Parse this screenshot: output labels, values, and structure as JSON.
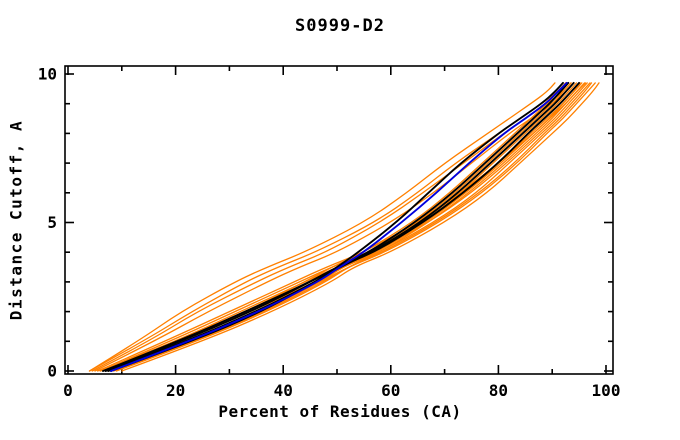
{
  "chart_data": {
    "type": "line",
    "title": "S0999-D2",
    "xlabel": "Percent of Residues (CA)",
    "ylabel": "Distance Cutoff, A",
    "xlim": [
      0,
      100
    ],
    "ylim": [
      0,
      10
    ],
    "x_major_ticks": [
      0,
      20,
      40,
      60,
      80,
      100
    ],
    "x_minor_ticks": [
      10,
      30,
      50,
      70,
      90
    ],
    "y_major_ticks": [
      0,
      5,
      10
    ],
    "y_minor_ticks": [
      1,
      2,
      3,
      4,
      6,
      7,
      8,
      9
    ],
    "grid": false,
    "legend": "none",
    "colors": {
      "orange": "#ff8000",
      "black": "#000000",
      "blue": "#0000dd",
      "axis": "#000000",
      "background": "#ffffff"
    },
    "y_levels": [
      0,
      1,
      2,
      3,
      3.5,
      4,
      5,
      6,
      7,
      8,
      8.5,
      9,
      9.4,
      9.7
    ],
    "series": [
      {
        "id": "orange-01",
        "color": "orange",
        "x": [
          6,
          20,
          33,
          44,
          49,
          55,
          64,
          71,
          77,
          83,
          86,
          89,
          91,
          92.5
        ]
      },
      {
        "id": "orange-02",
        "color": "orange",
        "x": [
          7,
          22,
          35,
          46,
          50,
          56,
          65,
          72,
          78,
          84,
          87,
          90,
          92,
          93.5
        ]
      },
      {
        "id": "orange-03",
        "color": "orange",
        "x": [
          8,
          23,
          36,
          47,
          51,
          57,
          66,
          73,
          79,
          85,
          88,
          91,
          93,
          94.5
        ]
      },
      {
        "id": "orange-04",
        "color": "orange",
        "x": [
          6,
          19,
          31,
          43,
          49,
          56,
          66,
          74,
          80,
          86,
          89,
          92,
          94,
          95.5
        ]
      },
      {
        "id": "orange-05",
        "color": "orange",
        "x": [
          9,
          24,
          37,
          48,
          52,
          58,
          67,
          74.5,
          81,
          87,
          90,
          92.5,
          94.5,
          96
        ]
      },
      {
        "id": "orange-06",
        "color": "orange",
        "x": [
          7,
          21,
          34,
          46,
          51,
          58,
          68,
          76,
          82,
          88,
          91,
          93.5,
          95.5,
          97
        ]
      },
      {
        "id": "orange-07",
        "color": "orange",
        "x": [
          8,
          22,
          35,
          47,
          52,
          59,
          69,
          77,
          83.5,
          89,
          92,
          94.5,
          96.5,
          98
        ]
      },
      {
        "id": "orange-08",
        "color": "orange",
        "x": [
          10,
          25,
          38,
          49,
          53,
          60,
          70,
          78,
          84,
          90,
          93,
          95.5,
          97.5,
          98.7
        ]
      },
      {
        "id": "orange-09",
        "color": "orange",
        "x": [
          6.5,
          20,
          32,
          44,
          50,
          57,
          67,
          75,
          81.5,
          87.5,
          90.5,
          93,
          95,
          96.5
        ]
      },
      {
        "id": "orange-10",
        "color": "orange",
        "x": [
          7.5,
          22.5,
          35.5,
          46.5,
          51,
          57.5,
          66.5,
          74,
          80.5,
          86.5,
          89.5,
          92,
          94,
          95.2
        ]
      },
      {
        "id": "orange-11",
        "color": "orange",
        "x": [
          8.5,
          23.5,
          36.5,
          47.5,
          52,
          58.5,
          68.5,
          76.5,
          83,
          88.5,
          91.5,
          94,
          96,
          97.3
        ]
      },
      {
        "id": "orange-12",
        "color": "orange",
        "x": [
          5.5,
          18,
          30,
          42,
          48,
          55,
          65,
          73,
          80,
          86.5,
          89.5,
          92.5,
          94.5,
          96.2
        ]
      },
      {
        "id": "orange-13",
        "color": "orange",
        "x": [
          4,
          13,
          21,
          31,
          37,
          44,
          55,
          63,
          70,
          78,
          82,
          86,
          89,
          90.5
        ]
      },
      {
        "id": "orange-14",
        "color": "orange",
        "x": [
          4,
          14,
          23,
          33,
          39,
          46,
          57,
          65,
          72,
          80,
          84,
          88,
          91,
          92.5
        ]
      },
      {
        "id": "orange-15",
        "color": "orange",
        "x": [
          4.5,
          15,
          24,
          35,
          41,
          48,
          58,
          66,
          73.5,
          81,
          85,
          89,
          92,
          93.5
        ]
      },
      {
        "id": "orange-16",
        "color": "orange",
        "x": [
          5,
          16,
          26,
          37,
          43,
          50,
          60,
          68,
          75,
          82,
          86,
          90,
          92.5,
          94
        ]
      },
      {
        "id": "black-01",
        "color": "black",
        "x": [
          8,
          23,
          36,
          46,
          50,
          54,
          61,
          67,
          73,
          80,
          84,
          88,
          90.5,
          92
        ]
      },
      {
        "id": "black-02",
        "color": "black",
        "x": [
          7,
          21,
          34,
          45,
          50,
          56,
          64.5,
          71.5,
          77.5,
          83.5,
          86.5,
          89.5,
          91.5,
          93
        ]
      },
      {
        "id": "black-03",
        "color": "black",
        "x": [
          7.5,
          22,
          35,
          46,
          50.5,
          56.5,
          65.5,
          72.5,
          78.5,
          84.5,
          87.5,
          90.5,
          92.5,
          94
        ]
      },
      {
        "id": "black-04",
        "color": "black",
        "x": [
          6.5,
          20.5,
          33,
          45,
          50,
          57,
          66,
          73.5,
          80,
          85.5,
          88.5,
          91.5,
          93.5,
          95
        ]
      },
      {
        "id": "blue-01",
        "color": "blue",
        "x": [
          8,
          22.5,
          35.5,
          46.5,
          50.5,
          55,
          62,
          68.5,
          74.5,
          81,
          85,
          88.8,
          91,
          92.7
        ]
      }
    ]
  }
}
